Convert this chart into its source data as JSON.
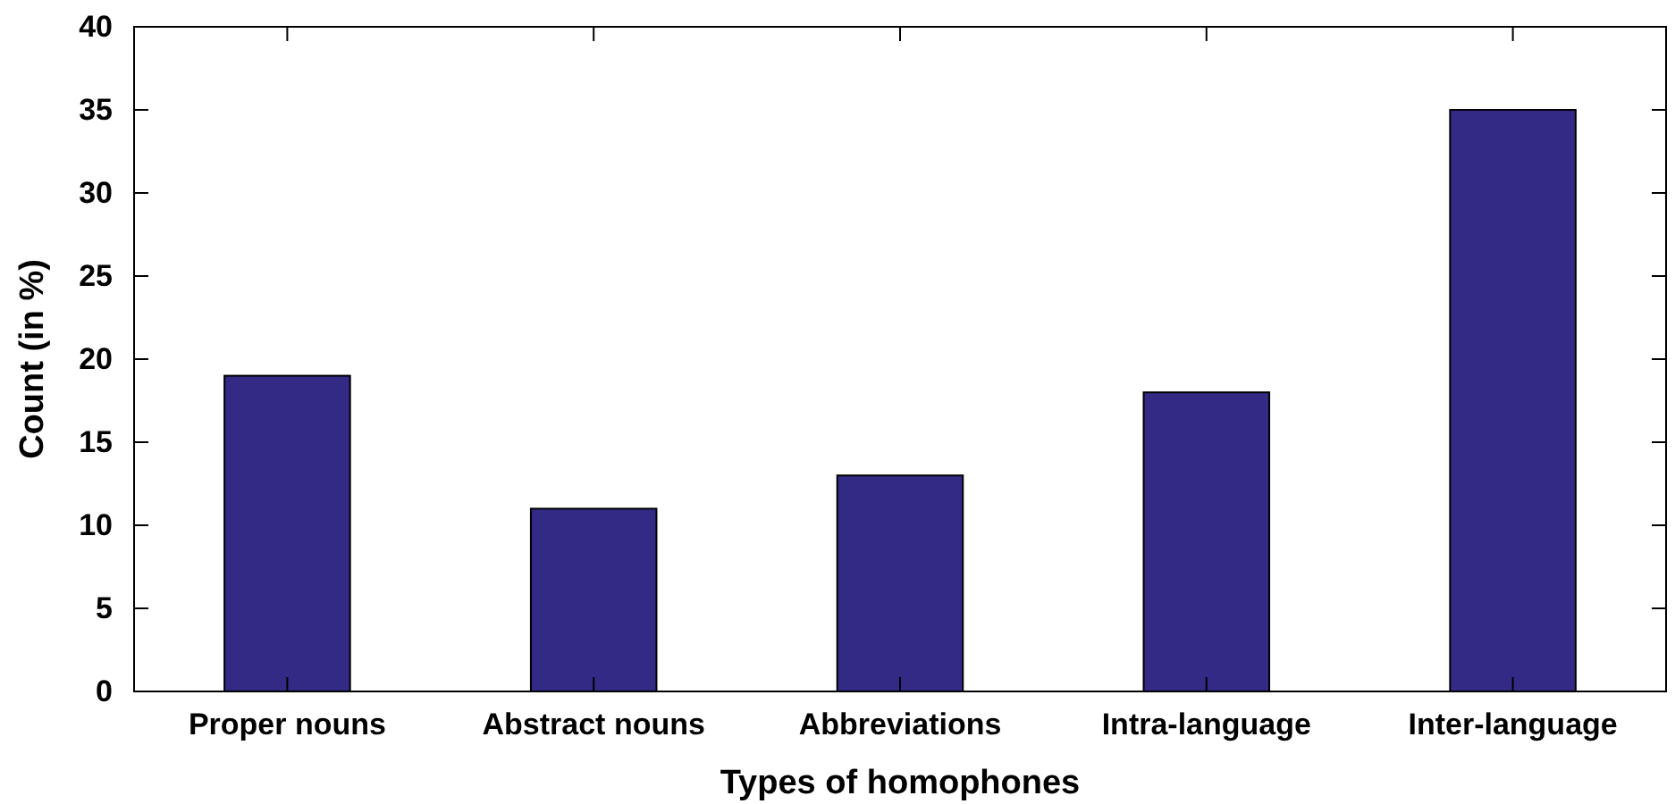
{
  "chart_data": {
    "type": "bar",
    "xlabel": "Types of homophones",
    "ylabel": "Count (in %)",
    "categories": [
      "Proper nouns",
      "Abstract nouns",
      "Abbreviations",
      "Intra-language",
      "Inter-language"
    ],
    "values": [
      19,
      11,
      13,
      18,
      35
    ],
    "color": "#332a85",
    "ylim": [
      0,
      40
    ],
    "yticks": [
      0,
      5,
      10,
      15,
      20,
      25,
      30,
      35,
      40
    ],
    "grid": false,
    "legend": false
  }
}
